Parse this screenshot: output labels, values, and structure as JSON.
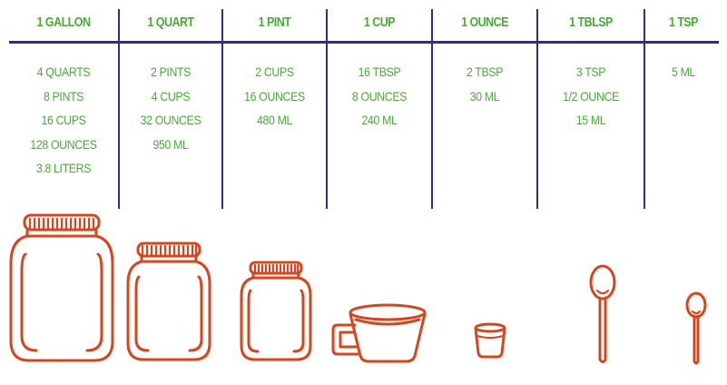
{
  "columns": [
    {
      "head": "1 GALLON",
      "items": [
        "4 QUARTS",
        "8 PINTS",
        "16 CUPS",
        "128 OUNCES",
        "3.8 LITERS"
      ]
    },
    {
      "head": "1 QUART",
      "items": [
        "2 PINTS",
        "4 CUPS",
        "32 OUNCES",
        "950 ML"
      ]
    },
    {
      "head": "1 PINT",
      "items": [
        "2 CUPS",
        "16 OUNCES",
        "480 ML"
      ]
    },
    {
      "head": "1 CUP",
      "items": [
        "16 TBSP",
        "8 OUNCES",
        "240 ML"
      ]
    },
    {
      "head": "1 OUNCE",
      "items": [
        "2 TBSP",
        "30 ML"
      ]
    },
    {
      "head": "1 TBLSP",
      "items": [
        "3 TSP",
        "1/2 OUNCE",
        "15 ML"
      ]
    },
    {
      "head": "1 TSP",
      "items": [
        "5 ML"
      ]
    }
  ],
  "illustrations": [
    "gallon-jar-icon",
    "quart-jar-icon",
    "pint-jar-icon",
    "cup-icon",
    "ounce-cup-icon",
    "tablespoon-icon",
    "teaspoon-icon"
  ],
  "colors": {
    "heading": "#4aa83a",
    "text": "#4aa83a",
    "rules": "#2b3085",
    "illustration": "#d4461f"
  }
}
